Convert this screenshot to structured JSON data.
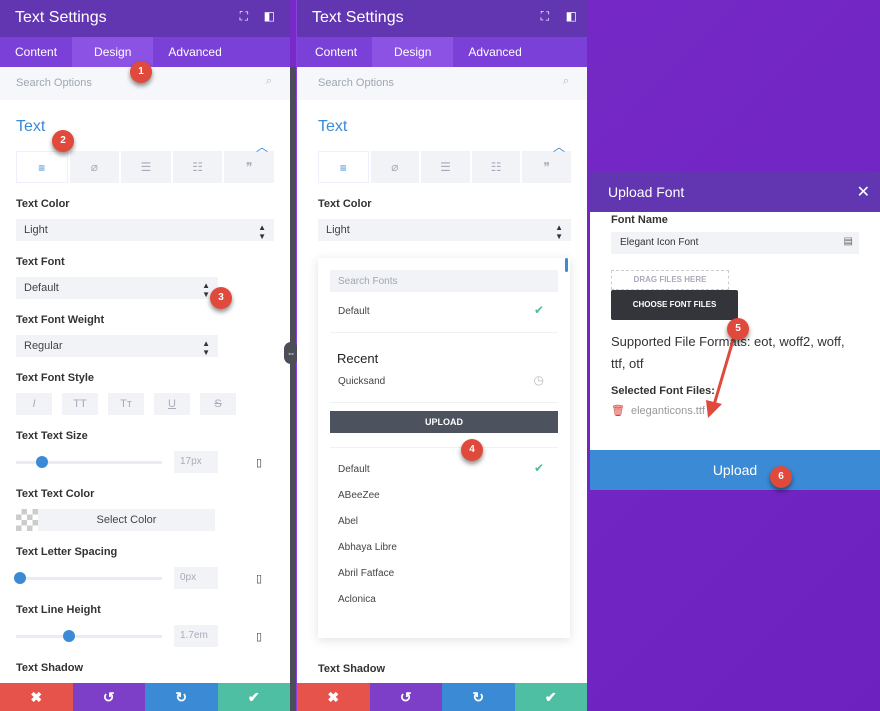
{
  "panel": {
    "title": "Text Settings",
    "tabs": [
      "Content",
      "Design",
      "Advanced"
    ],
    "search_placeholder": "Search Options",
    "section": "Text",
    "labels": {
      "text_color": "Text Color",
      "text_font": "Text Font",
      "font_weight": "Text Font Weight",
      "font_style": "Text Font Style",
      "text_size": "Text Text Size",
      "text_text_color": "Text Text Color",
      "letter_spacing": "Text Letter Spacing",
      "line_height": "Text Line Height",
      "shadow": "Text Shadow"
    },
    "values": {
      "text_color": "Light",
      "text_font": "Default",
      "font_weight": "Regular",
      "text_size": "17px",
      "select_color": "Select Color",
      "letter_spacing": "0px",
      "line_height": "1.7em"
    },
    "sliders": {
      "text_size": 0.18,
      "letter_spacing": 0.03,
      "line_height": 0.36
    },
    "style_buttons": [
      "I",
      "TT",
      "Tт",
      "U",
      "S"
    ]
  },
  "font_dropdown": {
    "search_placeholder": "Search Fonts",
    "selected": "Default",
    "recent_heading": "Recent",
    "recent": [
      "Quicksand"
    ],
    "upload_label": "UPLOAD",
    "fonts": [
      "Default",
      "ABeeZee",
      "Abel",
      "Abhaya Libre",
      "Abril Fatface",
      "Aclonica"
    ]
  },
  "modal": {
    "title": "Upload Font",
    "font_name_label": "Font Name",
    "font_name_value": "Elegant Icon Font",
    "drag_label": "DRAG FILES HERE",
    "choose_label": "CHOOSE FONT FILES",
    "formats": "Supported File Formats: eot, woff2, woff, ttf, otf",
    "selected_label": "Selected Font Files:",
    "file": "eleganticons.ttf",
    "upload": "Upload"
  },
  "badges": [
    "1",
    "2",
    "3",
    "4",
    "5",
    "6"
  ],
  "colors": {
    "header": "#6236b0",
    "tabs": "#7b40d8",
    "accent": "#3c8ad6",
    "cancel": "#e5534b",
    "undo": "#7d3fc8",
    "redo": "#3b8ad6",
    "save": "#4fbfa3",
    "badge": "#e04a3d"
  }
}
